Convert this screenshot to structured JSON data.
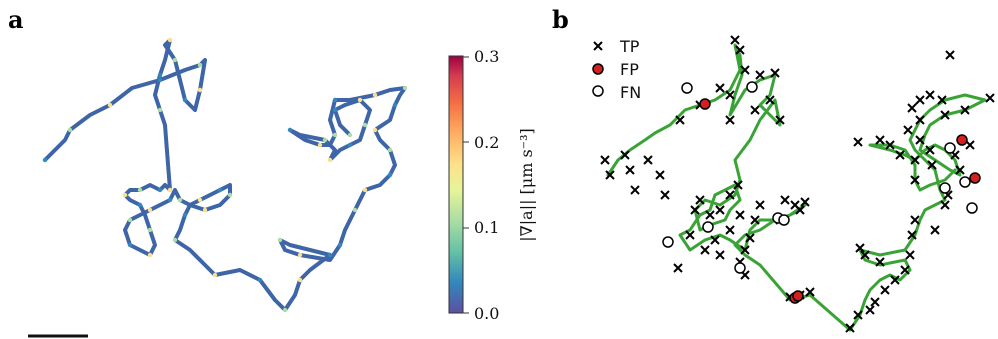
{
  "chart_data": [
    {
      "panel": "a",
      "type": "line",
      "xlabel": "",
      "ylabel": "",
      "colorbar": {
        "label": "|∇|a|| [μm s⁻³]",
        "ticks": [
          "0.0",
          "0.1",
          "0.2",
          "0.3"
        ],
        "range": [
          0.0,
          0.3
        ],
        "colormap": "Spectral_r"
      },
      "scale_bar": true,
      "trajectory": [
        [
          45,
          160
        ],
        [
          65,
          140
        ],
        [
          70,
          130
        ],
        [
          90,
          115
        ],
        [
          110,
          105
        ],
        [
          132,
          88
        ],
        [
          160,
          80
        ],
        [
          185,
          70
        ],
        [
          200,
          65
        ],
        [
          205,
          60
        ],
        [
          200,
          90
        ],
        [
          195,
          110
        ],
        [
          185,
          100
        ],
        [
          180,
          80
        ],
        [
          175,
          60
        ],
        [
          165,
          45
        ],
        [
          170,
          40
        ],
        [
          165,
          60
        ],
        [
          160,
          75
        ],
        [
          155,
          95
        ],
        [
          160,
          110
        ],
        [
          165,
          125
        ],
        [
          170,
          190
        ],
        [
          165,
          185
        ],
        [
          160,
          190
        ],
        [
          150,
          185
        ],
        [
          140,
          190
        ],
        [
          130,
          190
        ],
        [
          125,
          195
        ],
        [
          130,
          200
        ],
        [
          140,
          205
        ],
        [
          145,
          215
        ],
        [
          150,
          230
        ],
        [
          155,
          245
        ],
        [
          150,
          255
        ],
        [
          140,
          250
        ],
        [
          130,
          245
        ],
        [
          125,
          230
        ],
        [
          130,
          220
        ],
        [
          140,
          215
        ],
        [
          150,
          210
        ],
        [
          160,
          205
        ],
        [
          170,
          200
        ],
        [
          175,
          190
        ],
        [
          180,
          200
        ],
        [
          190,
          205
        ],
        [
          200,
          200
        ],
        [
          210,
          195
        ],
        [
          220,
          190
        ],
        [
          230,
          185
        ],
        [
          230,
          195
        ],
        [
          220,
          205
        ],
        [
          205,
          210
        ],
        [
          190,
          205
        ],
        [
          185,
          215
        ],
        [
          180,
          230
        ],
        [
          175,
          240
        ],
        [
          190,
          250
        ],
        [
          215,
          275
        ],
        [
          240,
          270
        ],
        [
          260,
          280
        ],
        [
          275,
          300
        ],
        [
          285,
          310
        ],
        [
          295,
          295
        ],
        [
          300,
          280
        ],
        [
          310,
          270
        ],
        [
          330,
          255
        ],
        [
          290,
          245
        ],
        [
          280,
          240
        ],
        [
          285,
          250
        ],
        [
          300,
          255
        ],
        [
          330,
          260
        ],
        [
          340,
          245
        ],
        [
          345,
          230
        ],
        [
          355,
          210
        ],
        [
          360,
          200
        ],
        [
          365,
          190
        ],
        [
          380,
          185
        ],
        [
          390,
          175
        ],
        [
          395,
          165
        ],
        [
          390,
          150
        ],
        [
          380,
          140
        ],
        [
          375,
          130
        ],
        [
          390,
          120
        ],
        [
          395,
          105
        ],
        [
          400,
          95
        ],
        [
          405,
          88
        ],
        [
          390,
          90
        ],
        [
          375,
          95
        ],
        [
          350,
          100
        ],
        [
          335,
          100
        ],
        [
          330,
          120
        ],
        [
          335,
          135
        ],
        [
          330,
          145
        ],
        [
          320,
          145
        ],
        [
          305,
          140
        ],
        [
          290,
          130
        ],
        [
          300,
          135
        ],
        [
          325,
          140
        ],
        [
          335,
          150
        ],
        [
          330,
          160
        ],
        [
          340,
          150
        ],
        [
          350,
          145
        ],
        [
          360,
          140
        ],
        [
          365,
          125
        ],
        [
          370,
          110
        ],
        [
          360,
          100
        ],
        [
          345,
          105
        ],
        [
          335,
          110
        ],
        [
          340,
          125
        ],
        [
          350,
          135
        ]
      ]
    },
    {
      "panel": "b",
      "type": "scatter",
      "xlabel": "",
      "ylabel": "",
      "legend": {
        "position": "top-left",
        "entries": [
          "TP",
          "FP",
          "FN"
        ]
      },
      "colors": {
        "trajectory": "#3aa335",
        "tp": "#000000",
        "fp": "#d41f1f",
        "fn": "#ffffff"
      },
      "trajectory": [
        [
          608,
          175
        ],
        [
          618,
          160
        ],
        [
          630,
          150
        ],
        [
          645,
          140
        ],
        [
          655,
          133
        ],
        [
          670,
          125
        ],
        [
          685,
          110
        ],
        [
          700,
          105
        ],
        [
          715,
          100
        ],
        [
          730,
          90
        ],
        [
          740,
          70
        ],
        [
          735,
          45
        ],
        [
          740,
          55
        ],
        [
          742,
          75
        ],
        [
          735,
          95
        ],
        [
          730,
          115
        ],
        [
          745,
          90
        ],
        [
          760,
          80
        ],
        [
          775,
          75
        ],
        [
          770,
          95
        ],
        [
          760,
          105
        ],
        [
          770,
          115
        ],
        [
          780,
          125
        ],
        [
          775,
          100
        ],
        [
          760,
          120
        ],
        [
          750,
          140
        ],
        [
          735,
          160
        ],
        [
          740,
          180
        ],
        [
          735,
          195
        ],
        [
          720,
          205
        ],
        [
          705,
          200
        ],
        [
          695,
          210
        ],
        [
          700,
          230
        ],
        [
          710,
          225
        ],
        [
          725,
          220
        ],
        [
          730,
          210
        ],
        [
          740,
          200
        ],
        [
          735,
          185
        ],
        [
          725,
          190
        ],
        [
          715,
          195
        ],
        [
          710,
          210
        ],
        [
          700,
          215
        ],
        [
          690,
          230
        ],
        [
          680,
          235
        ],
        [
          690,
          250
        ],
        [
          705,
          240
        ],
        [
          720,
          235
        ],
        [
          730,
          240
        ],
        [
          745,
          250
        ],
        [
          750,
          230
        ],
        [
          760,
          220
        ],
        [
          780,
          220
        ],
        [
          800,
          210
        ],
        [
          805,
          205
        ],
        [
          790,
          215
        ],
        [
          775,
          220
        ],
        [
          760,
          230
        ],
        [
          745,
          235
        ],
        [
          735,
          245
        ],
        [
          745,
          255
        ],
        [
          760,
          265
        ],
        [
          790,
          300
        ],
        [
          800,
          298
        ],
        [
          810,
          295
        ],
        [
          850,
          330
        ],
        [
          860,
          315
        ],
        [
          865,
          300
        ],
        [
          870,
          290
        ],
        [
          880,
          280
        ],
        [
          890,
          275
        ],
        [
          900,
          280
        ],
        [
          910,
          270
        ],
        [
          905,
          260
        ],
        [
          880,
          265
        ],
        [
          865,
          260
        ],
        [
          860,
          250
        ],
        [
          880,
          255
        ],
        [
          905,
          250
        ],
        [
          915,
          235
        ],
        [
          920,
          220
        ],
        [
          925,
          210
        ],
        [
          935,
          205
        ],
        [
          945,
          200
        ],
        [
          940,
          190
        ],
        [
          935,
          170
        ],
        [
          925,
          160
        ],
        [
          915,
          150
        ],
        [
          910,
          140
        ],
        [
          915,
          130
        ],
        [
          920,
          120
        ],
        [
          930,
          110
        ],
        [
          945,
          100
        ],
        [
          965,
          95
        ],
        [
          985,
          100
        ],
        [
          965,
          110
        ],
        [
          945,
          115
        ],
        [
          930,
          125
        ],
        [
          925,
          135
        ],
        [
          920,
          150
        ],
        [
          935,
          160
        ],
        [
          950,
          170
        ],
        [
          960,
          175
        ],
        [
          955,
          160
        ],
        [
          945,
          150
        ],
        [
          935,
          145
        ],
        [
          925,
          150
        ],
        [
          915,
          160
        ],
        [
          905,
          155
        ],
        [
          890,
          150
        ],
        [
          870,
          145
        ],
        [
          890,
          145
        ],
        [
          905,
          150
        ],
        [
          915,
          165
        ],
        [
          915,
          180
        ],
        [
          920,
          190
        ],
        [
          930,
          185
        ],
        [
          945,
          180
        ],
        [
          955,
          170
        ]
      ],
      "tp_points": [
        [
          605,
          160
        ],
        [
          610,
          175
        ],
        [
          625,
          155
        ],
        [
          630,
          170
        ],
        [
          635,
          190
        ],
        [
          648,
          160
        ],
        [
          665,
          195
        ],
        [
          660,
          175
        ],
        [
          680,
          120
        ],
        [
          700,
          105
        ],
        [
          720,
          88
        ],
        [
          735,
          40
        ],
        [
          740,
          50
        ],
        [
          745,
          70
        ],
        [
          730,
          95
        ],
        [
          730,
          120
        ],
        [
          755,
          110
        ],
        [
          760,
          75
        ],
        [
          770,
          100
        ],
        [
          775,
          73
        ],
        [
          780,
          120
        ],
        [
          700,
          200
        ],
        [
          710,
          215
        ],
        [
          715,
          240
        ],
        [
          720,
          210
        ],
        [
          730,
          195
        ],
        [
          738,
          185
        ],
        [
          740,
          215
        ],
        [
          730,
          230
        ],
        [
          745,
          250
        ],
        [
          750,
          238
        ],
        [
          755,
          220
        ],
        [
          760,
          205
        ],
        [
          780,
          220
        ],
        [
          795,
          205
        ],
        [
          805,
          202
        ],
        [
          800,
          210
        ],
        [
          785,
          200
        ],
        [
          695,
          210
        ],
        [
          690,
          235
        ],
        [
          678,
          268
        ],
        [
          705,
          250
        ],
        [
          720,
          255
        ],
        [
          740,
          262
        ],
        [
          745,
          275
        ],
        [
          790,
          297
        ],
        [
          800,
          295
        ],
        [
          810,
          292
        ],
        [
          850,
          328
        ],
        [
          858,
          315
        ],
        [
          870,
          310
        ],
        [
          875,
          302
        ],
        [
          885,
          290
        ],
        [
          895,
          280
        ],
        [
          905,
          270
        ],
        [
          910,
          255
        ],
        [
          880,
          262
        ],
        [
          865,
          255
        ],
        [
          860,
          248
        ],
        [
          912,
          235
        ],
        [
          915,
          220
        ],
        [
          935,
          230
        ],
        [
          945,
          205
        ],
        [
          948,
          195
        ],
        [
          945,
          115
        ],
        [
          950,
          55
        ],
        [
          920,
          100
        ],
        [
          930,
          95
        ],
        [
          942,
          100
        ],
        [
          965,
          110
        ],
        [
          990,
          98
        ],
        [
          912,
          108
        ],
        [
          920,
          120
        ],
        [
          908,
          130
        ],
        [
          920,
          140
        ],
        [
          930,
          150
        ],
        [
          915,
          160
        ],
        [
          900,
          155
        ],
        [
          890,
          145
        ],
        [
          880,
          140
        ],
        [
          858,
          142
        ],
        [
          915,
          180
        ],
        [
          932,
          165
        ],
        [
          955,
          155
        ],
        [
          960,
          170
        ],
        [
          970,
          145
        ]
      ],
      "fp_points": [
        [
          705,
          104
        ],
        [
          795,
          298
        ],
        [
          798,
          296
        ],
        [
          962,
          140
        ],
        [
          975,
          178
        ]
      ],
      "fn_points": [
        [
          687,
          88
        ],
        [
          752,
          87
        ],
        [
          668,
          242
        ],
        [
          708,
          227
        ],
        [
          740,
          268
        ],
        [
          778,
          218
        ],
        [
          784,
          220
        ],
        [
          950,
          148
        ],
        [
          965,
          182
        ],
        [
          945,
          188
        ],
        [
          972,
          208
        ]
      ]
    }
  ],
  "labels": {
    "panel_a": "a",
    "panel_b": "b"
  }
}
